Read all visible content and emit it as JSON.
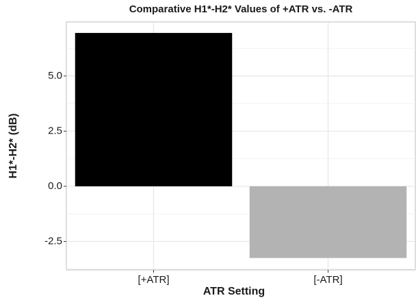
{
  "chart_data": {
    "type": "bar",
    "title": "Comparative H1*-H2* Values of +ATR vs. -ATR",
    "x_label": "ATR Setting",
    "y_label": "H1*-H2* (dB)",
    "categories": [
      "[+ATR]",
      "[-ATR]"
    ],
    "values": [
      6.95,
      -3.25
    ],
    "colors": [
      "#000000",
      "#b3b3b3"
    ],
    "ylim": [
      -3.79,
      7.45
    ],
    "yticks": [
      -2.5,
      {
        "value": 0,
        "label": "0.0"
      },
      2.5,
      {
        "value": 5,
        "label": "5.0"
      }
    ],
    "grid": true
  }
}
